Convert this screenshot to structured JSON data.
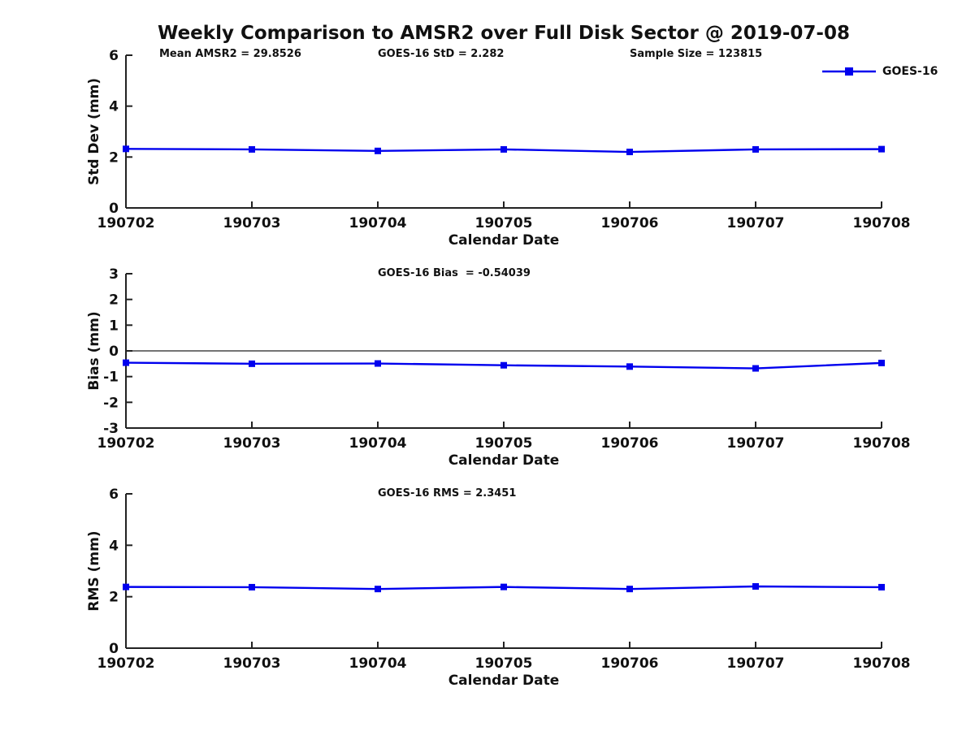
{
  "title": "Weekly Comparison to AMSR2 over Full Disk Sector @ 2019-07-08",
  "legend": {
    "label": "GOES-16",
    "color": "#0000ee"
  },
  "chart_data": [
    {
      "type": "line",
      "name": "std-dev",
      "ylabel": "Std Dev (mm)",
      "xlabel": "Calendar Date",
      "categories": [
        "190702",
        "190703",
        "190704",
        "190705",
        "190706",
        "190707",
        "190708"
      ],
      "series": [
        {
          "name": "GOES-16",
          "color": "#0000ee",
          "marker": "square",
          "values": [
            2.32,
            2.3,
            2.24,
            2.3,
            2.2,
            2.3,
            2.31
          ]
        }
      ],
      "ylim": [
        0,
        6
      ],
      "yticks": [
        0,
        2,
        4,
        6
      ],
      "grid": false,
      "zero_line": false,
      "legend_position": "top-right",
      "annotations": [
        "Mean AMSR2 = 29.8526",
        "GOES-16 StD = 2.282",
        "Sample Size = 123815"
      ]
    },
    {
      "type": "line",
      "name": "bias",
      "ylabel": "Bias (mm)",
      "xlabel": "Calendar Date",
      "categories": [
        "190702",
        "190703",
        "190704",
        "190705",
        "190706",
        "190707",
        "190708"
      ],
      "series": [
        {
          "name": "GOES-16",
          "color": "#0000ee",
          "marker": "square",
          "values": [
            -0.46,
            -0.5,
            -0.49,
            -0.56,
            -0.61,
            -0.68,
            -0.47
          ]
        }
      ],
      "ylim": [
        -3,
        3
      ],
      "yticks": [
        -3,
        -2,
        -1,
        0,
        1,
        2,
        3
      ],
      "grid": false,
      "zero_line": true,
      "annotations": [
        "GOES-16 Bias  = -0.54039"
      ]
    },
    {
      "type": "line",
      "name": "rms",
      "ylabel": "RMS (mm)",
      "xlabel": "Calendar Date",
      "categories": [
        "190702",
        "190703",
        "190704",
        "190705",
        "190706",
        "190707",
        "190708"
      ],
      "series": [
        {
          "name": "GOES-16",
          "color": "#0000ee",
          "marker": "square",
          "values": [
            2.38,
            2.37,
            2.3,
            2.38,
            2.3,
            2.4,
            2.37
          ]
        }
      ],
      "ylim": [
        0,
        6
      ],
      "yticks": [
        0,
        2,
        4,
        6
      ],
      "grid": false,
      "zero_line": false,
      "annotations": [
        "GOES-16 RMS = 2.3451"
      ]
    }
  ]
}
